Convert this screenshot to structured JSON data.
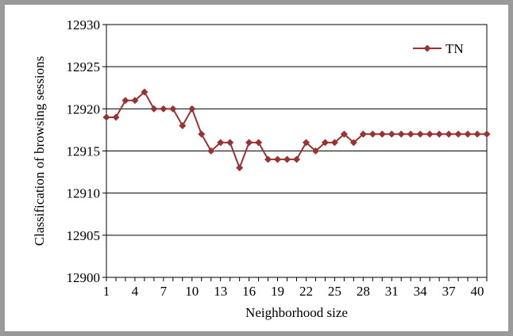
{
  "chart_data": {
    "type": "line",
    "title": "",
    "xlabel": "Neighborhood size",
    "ylabel": "Classification of browsing sessions",
    "xlim": [
      1,
      41
    ],
    "ylim": [
      12900,
      12930
    ],
    "y_ticks": [
      12900,
      12905,
      12910,
      12915,
      12920,
      12925,
      12930
    ],
    "x_ticks": [
      1,
      4,
      7,
      10,
      13,
      16,
      19,
      22,
      25,
      28,
      31,
      34,
      37,
      40
    ],
    "grid": "horizontal",
    "legend_position": "top-right",
    "series": [
      {
        "name": "TN",
        "color": "#993333",
        "marker": "diamond",
        "x": [
          1,
          2,
          3,
          4,
          5,
          6,
          7,
          8,
          9,
          10,
          11,
          12,
          13,
          14,
          15,
          16,
          17,
          18,
          19,
          20,
          21,
          22,
          23,
          24,
          25,
          26,
          27,
          28,
          29,
          30,
          31,
          32,
          33,
          34,
          35,
          36,
          37,
          38,
          39,
          40,
          41
        ],
        "values": [
          12919,
          12919,
          12921,
          12921,
          12922,
          12920,
          12920,
          12920,
          12918,
          12920,
          12917,
          12915,
          12916,
          12916,
          12913,
          12916,
          12916,
          12914,
          12914,
          12914,
          12914,
          12916,
          12915,
          12916,
          12916,
          12917,
          12916,
          12917,
          12917,
          12917,
          12917,
          12917,
          12917,
          12917,
          12917,
          12917,
          12917,
          12917,
          12917,
          12917,
          12917
        ]
      }
    ]
  }
}
